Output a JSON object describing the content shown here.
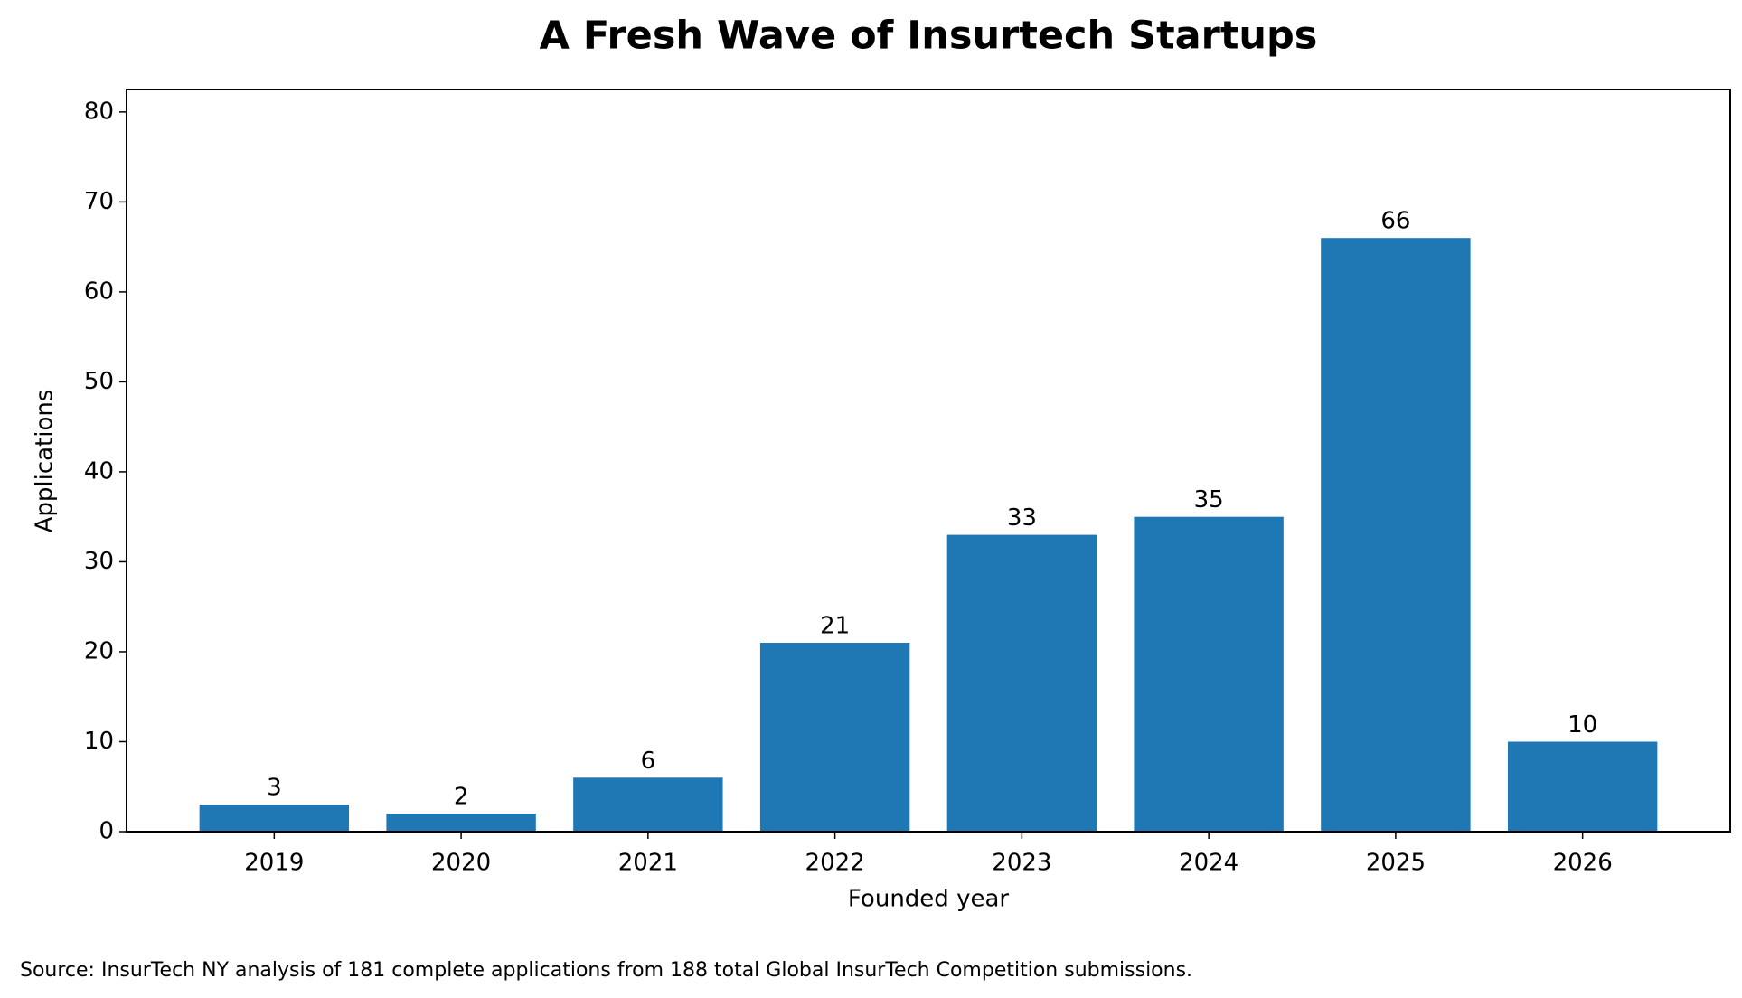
{
  "chart_data": {
    "type": "bar",
    "title": "A Fresh Wave of Insurtech Startups",
    "x_label": "Founded year",
    "y_label": "Applications",
    "source": "Source: InsurTech NY analysis of 181 complete applications from 188 total Global InsurTech Competition submissions.",
    "categories": [
      "2019",
      "2020",
      "2021",
      "2022",
      "2023",
      "2024",
      "2025",
      "2026"
    ],
    "values": [
      3,
      2,
      6,
      21,
      33,
      35,
      66,
      10
    ],
    "color": "#1f77b4",
    "ylim": [
      0,
      82.5
    ],
    "yticks": [
      0,
      10,
      20,
      30,
      40,
      50,
      60,
      70,
      80
    ],
    "grid": false
  }
}
